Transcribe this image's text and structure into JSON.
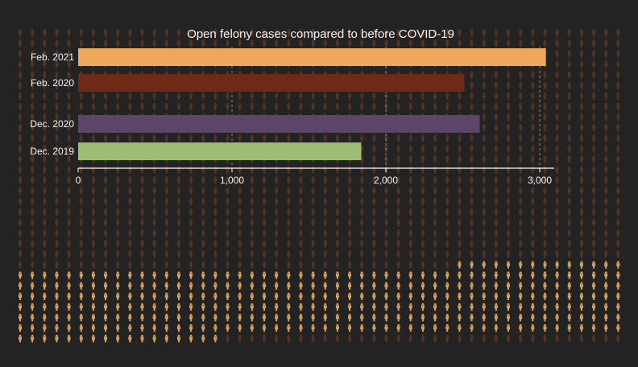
{
  "chart_data": {
    "type": "bar",
    "title": "Open felony cases compared to before COVID-19",
    "categories": [
      "Feb. 2021",
      "Feb. 2020",
      "Dec. 2020",
      "Dec. 2019"
    ],
    "values": [
      3040,
      2510,
      2610,
      1840
    ],
    "colors": [
      "#eea85b",
      "#6e2a16",
      "#5c4566",
      "#9bbd74"
    ],
    "xlim": [
      0,
      3100
    ],
    "xticks": [
      0,
      1000,
      2000,
      3000
    ],
    "xtick_labels": [
      "0",
      "1,000",
      "2,000",
      "3,000"
    ],
    "grid": "vertical dashed",
    "background_colors": {
      "page": "#232323",
      "figure_dim": "#6a3a22",
      "figure_lit": "#e6a85e"
    }
  }
}
